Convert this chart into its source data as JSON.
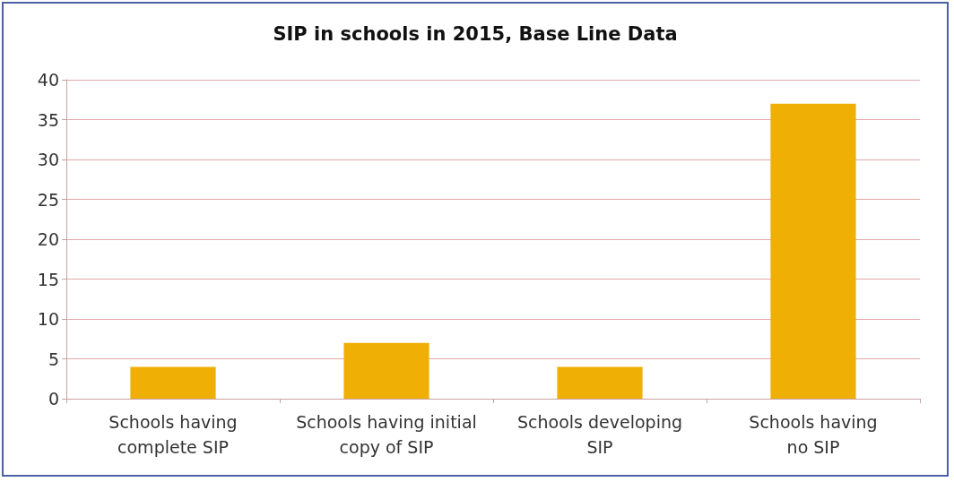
{
  "chart_data": {
    "type": "bar",
    "title": "SIP in schools in 2015, Base Line Data",
    "categories": [
      "Schools having\ncomplete SIP",
      "Schools having initial\ncopy of SIP",
      "Schools developing\nSIP",
      "Schools having\nno SIP"
    ],
    "values": [
      4,
      7,
      4,
      37
    ],
    "color": "#efaf05",
    "ylim": [
      0,
      40
    ],
    "yticks": [
      0,
      5,
      10,
      15,
      20,
      25,
      30,
      35,
      40
    ],
    "grid": "y"
  }
}
